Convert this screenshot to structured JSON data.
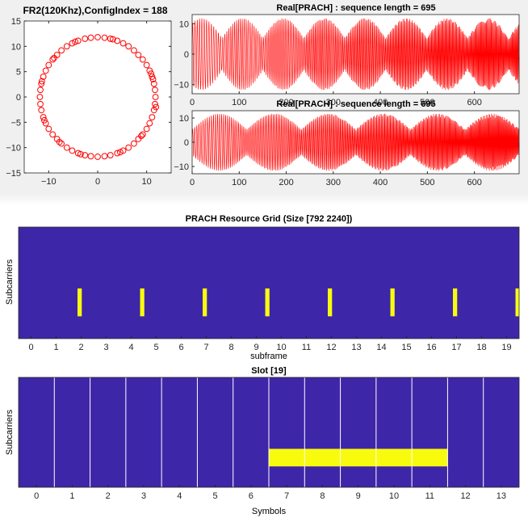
{
  "chart_data": [
    {
      "id": "constellation",
      "type": "scatter",
      "title": "FR2(120Khz),ConfigIndex = 188",
      "xlim": [
        -15,
        15
      ],
      "ylim": [
        -15,
        15
      ],
      "xticks": [
        -10,
        0,
        10
      ],
      "yticks": [
        -15,
        -10,
        -5,
        0,
        5,
        10,
        15
      ],
      "marker": "circle",
      "color": "#ff0000",
      "radius": 11.8,
      "points": [
        [
          11.8,
          0.0
        ],
        [
          11.7,
          1.4
        ],
        [
          11.5,
          2.6
        ],
        [
          11.1,
          4.0
        ],
        [
          10.6,
          5.2
        ],
        [
          10.0,
          6.3
        ],
        [
          9.2,
          7.4
        ],
        [
          8.3,
          8.3
        ],
        [
          7.4,
          9.2
        ],
        [
          6.3,
          10.0
        ],
        [
          5.2,
          10.6
        ],
        [
          4.0,
          11.1
        ],
        [
          2.6,
          11.5
        ],
        [
          1.4,
          11.7
        ],
        [
          0.0,
          11.8
        ],
        [
          -1.4,
          11.7
        ],
        [
          -2.6,
          11.5
        ],
        [
          -4.0,
          11.1
        ],
        [
          -5.2,
          10.6
        ],
        [
          -6.3,
          10.0
        ],
        [
          -7.4,
          9.2
        ],
        [
          -8.3,
          8.3
        ],
        [
          -9.2,
          7.4
        ],
        [
          -10.0,
          6.3
        ],
        [
          -10.6,
          5.2
        ],
        [
          -11.1,
          4.0
        ],
        [
          -11.5,
          2.6
        ],
        [
          -11.7,
          1.4
        ],
        [
          -11.8,
          0.0
        ],
        [
          -11.7,
          -1.4
        ],
        [
          -11.5,
          -2.6
        ],
        [
          -11.1,
          -4.0
        ],
        [
          -10.6,
          -5.2
        ],
        [
          -10.0,
          -6.3
        ],
        [
          -9.2,
          -7.4
        ],
        [
          -8.3,
          -8.3
        ],
        [
          -7.4,
          -9.2
        ],
        [
          -6.3,
          -10.0
        ],
        [
          -5.2,
          -10.6
        ],
        [
          -4.0,
          -11.1
        ],
        [
          -2.6,
          -11.5
        ],
        [
          -1.4,
          -11.7
        ],
        [
          0.0,
          -11.8
        ],
        [
          1.4,
          -11.7
        ],
        [
          2.6,
          -11.5
        ],
        [
          4.0,
          -11.1
        ],
        [
          5.2,
          -10.6
        ],
        [
          6.3,
          -10.0
        ],
        [
          7.4,
          -9.2
        ],
        [
          8.3,
          -8.3
        ],
        [
          9.2,
          -7.4
        ],
        [
          10.0,
          -6.3
        ],
        [
          10.6,
          -5.2
        ],
        [
          11.1,
          -4.0
        ],
        [
          11.5,
          -2.6
        ],
        [
          11.7,
          -1.4
        ],
        [
          10.9,
          4.6
        ],
        [
          -10.9,
          -4.6
        ],
        [
          4.6,
          -10.9
        ],
        [
          -4.6,
          10.9
        ],
        [
          8.9,
          -7.7
        ],
        [
          -8.9,
          7.7
        ],
        [
          11.9,
          -2.0
        ],
        [
          -3.5,
          -11.3
        ],
        [
          3.1,
          11.4
        ],
        [
          -11.4,
          3.1
        ],
        [
          11.3,
          3.5
        ],
        [
          -7.8,
          -8.9
        ]
      ]
    },
    {
      "id": "real-prach-1",
      "type": "line",
      "title": "Real[PRACH] : sequence length = 695",
      "xlim": [
        0,
        695
      ],
      "ylim": [
        -13,
        13
      ],
      "xticks": [
        0,
        100,
        200,
        300,
        400,
        500,
        600
      ],
      "yticks": [
        -10,
        0,
        10
      ],
      "color": "#ff0000",
      "n_samples": 695,
      "amplitude": 11.8,
      "carrier_cycles": 190,
      "envelope_period": 87,
      "envelope_phase": 20
    },
    {
      "id": "real-prach-2",
      "type": "line",
      "title": "Real[PRACH] : sequence length = 695",
      "xlim": [
        0,
        695
      ],
      "ylim": [
        -13,
        13
      ],
      "xticks": [
        0,
        100,
        200,
        300,
        400,
        500,
        600
      ],
      "yticks": [
        -10,
        0,
        10
      ],
      "color": "#ff0000",
      "n_samples": 695,
      "amplitude": 11.8,
      "carrier_cycles": 210,
      "envelope_period": 116,
      "envelope_phase": 58
    },
    {
      "id": "resource-grid",
      "type": "heatmap",
      "title": "PRACH Resource Grid (Size [792 2240])",
      "xlabel": "subframe",
      "ylabel": "Subcarriers",
      "xlim": [
        -0.5,
        19.5
      ],
      "xticks": [
        0,
        1,
        2,
        3,
        4,
        5,
        6,
        7,
        8,
        9,
        10,
        11,
        12,
        13,
        14,
        15,
        16,
        17,
        18,
        19
      ],
      "background": "#3e26a8",
      "highlight": "#f9fb0e",
      "occupied_subframes": [
        1.94,
        4.44,
        6.94,
        9.44,
        11.94,
        14.44,
        16.94,
        19.44
      ],
      "occupied_width": 0.17,
      "occupied_rows": [
        0.55,
        0.8
      ]
    },
    {
      "id": "slot-grid",
      "type": "heatmap",
      "title": "Slot [19]",
      "xlabel": "Symbols",
      "ylabel": "Subcarriers",
      "xlim": [
        -0.5,
        13.5
      ],
      "xticks": [
        0,
        1,
        2,
        3,
        4,
        5,
        6,
        7,
        8,
        9,
        10,
        11,
        12,
        13
      ],
      "background": "#3e26a8",
      "highlight": "#f9fb0e",
      "grid_lines": "white",
      "occupied_symbols": [
        7,
        11
      ],
      "occupied_rows": [
        0.65,
        0.81
      ]
    }
  ]
}
